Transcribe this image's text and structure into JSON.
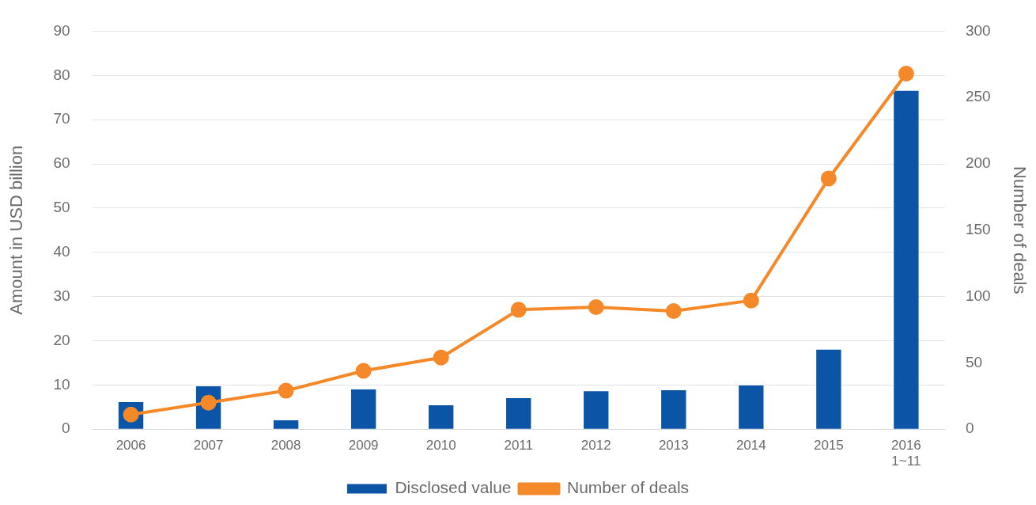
{
  "chart_data": {
    "type": "bar",
    "categories": [
      "2006",
      "2007",
      "2008",
      "2009",
      "2010",
      "2011",
      "2012",
      "2013",
      "2014",
      "2015",
      "2016\n1~11"
    ],
    "series": [
      {
        "name": "Disclosed value",
        "color": "#0b54a6",
        "values": [
          6.1,
          9.7,
          2.0,
          9.0,
          5.4,
          7.0,
          8.6,
          8.8,
          9.9,
          18.0,
          76.5
        ]
      },
      {
        "name": "Number of deals",
        "type": "line",
        "axis": "y2",
        "color": "#f5892a",
        "marker": "circle",
        "values": [
          11,
          20,
          29,
          44,
          54,
          90,
          92,
          89,
          97,
          189,
          268
        ]
      }
    ],
    "ylabel": "Amount in USD billion",
    "y2label": "Number of deals",
    "ylim": [
      0,
      90
    ],
    "yticks": [
      0,
      10,
      20,
      30,
      40,
      50,
      60,
      70,
      80,
      90
    ],
    "y2lim": [
      0,
      300
    ],
    "y2ticks": [
      0,
      50,
      100,
      150,
      200,
      250,
      300
    ],
    "grid": "y",
    "legend": "bottom"
  }
}
